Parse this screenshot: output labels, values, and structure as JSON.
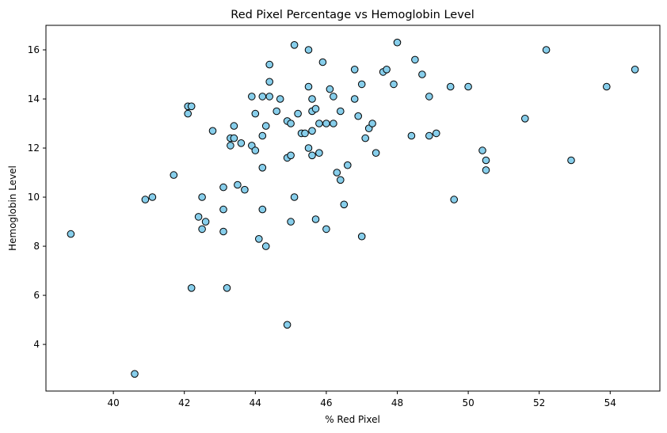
{
  "chart_data": {
    "type": "scatter",
    "title": "Red Pixel Percentage vs Hemoglobin Level",
    "xlabel": "% Red Pixel",
    "ylabel": "Hemoglobin Level",
    "xlim": [
      38.1,
      55.4
    ],
    "ylim": [
      2.1,
      17.0
    ],
    "xticks": [
      40,
      42,
      44,
      46,
      48,
      50,
      52,
      54
    ],
    "yticks": [
      4,
      6,
      8,
      10,
      12,
      14,
      16
    ],
    "grid": false,
    "legend": "none",
    "marker_color": "#87CEEB",
    "marker_edge_color": "#000000",
    "points": [
      [
        38.8,
        8.5
      ],
      [
        40.6,
        2.8
      ],
      [
        40.9,
        9.9
      ],
      [
        41.1,
        10.0
      ],
      [
        41.7,
        10.9
      ],
      [
        42.1,
        13.7
      ],
      [
        42.1,
        13.4
      ],
      [
        42.2,
        13.7
      ],
      [
        42.2,
        6.3
      ],
      [
        42.4,
        9.2
      ],
      [
        42.5,
        8.7
      ],
      [
        42.5,
        10.0
      ],
      [
        42.6,
        9.0
      ],
      [
        42.8,
        12.7
      ],
      [
        43.1,
        10.4
      ],
      [
        43.1,
        9.5
      ],
      [
        43.1,
        8.6
      ],
      [
        43.2,
        6.3
      ],
      [
        43.3,
        12.4
      ],
      [
        43.3,
        12.1
      ],
      [
        43.4,
        12.9
      ],
      [
        43.4,
        12.4
      ],
      [
        43.5,
        10.5
      ],
      [
        43.6,
        12.2
      ],
      [
        43.7,
        10.3
      ],
      [
        43.9,
        14.1
      ],
      [
        43.9,
        12.1
      ],
      [
        44.0,
        13.4
      ],
      [
        44.0,
        11.9
      ],
      [
        44.1,
        8.3
      ],
      [
        44.2,
        9.5
      ],
      [
        44.2,
        11.2
      ],
      [
        44.2,
        12.5
      ],
      [
        44.2,
        14.1
      ],
      [
        44.3,
        12.9
      ],
      [
        44.3,
        8.0
      ],
      [
        44.4,
        14.1
      ],
      [
        44.4,
        15.4
      ],
      [
        44.4,
        14.7
      ],
      [
        44.6,
        13.5
      ],
      [
        44.7,
        14.0
      ],
      [
        44.9,
        11.6
      ],
      [
        44.9,
        13.1
      ],
      [
        44.9,
        4.8
      ],
      [
        45.0,
        11.7
      ],
      [
        45.0,
        13.0
      ],
      [
        45.0,
        9.0
      ],
      [
        45.1,
        10.0
      ],
      [
        45.1,
        16.2
      ],
      [
        45.2,
        13.4
      ],
      [
        45.3,
        12.6
      ],
      [
        45.4,
        12.6
      ],
      [
        45.5,
        12.0
      ],
      [
        45.5,
        14.5
      ],
      [
        45.5,
        16.0
      ],
      [
        45.6,
        14.0
      ],
      [
        45.6,
        13.5
      ],
      [
        45.6,
        11.7
      ],
      [
        45.6,
        12.7
      ],
      [
        45.7,
        13.6
      ],
      [
        45.7,
        9.1
      ],
      [
        45.8,
        11.8
      ],
      [
        45.8,
        13.0
      ],
      [
        45.9,
        15.5
      ],
      [
        46.0,
        13.0
      ],
      [
        46.0,
        8.7
      ],
      [
        46.1,
        14.4
      ],
      [
        46.2,
        14.1
      ],
      [
        46.2,
        13.0
      ],
      [
        46.3,
        11.0
      ],
      [
        46.4,
        10.7
      ],
      [
        46.4,
        13.5
      ],
      [
        46.5,
        9.7
      ],
      [
        46.6,
        11.3
      ],
      [
        46.8,
        15.2
      ],
      [
        46.8,
        14.0
      ],
      [
        46.9,
        13.3
      ],
      [
        47.0,
        8.4
      ],
      [
        47.0,
        14.6
      ],
      [
        47.1,
        12.4
      ],
      [
        47.2,
        12.8
      ],
      [
        47.3,
        13.0
      ],
      [
        47.4,
        11.8
      ],
      [
        47.6,
        15.1
      ],
      [
        47.7,
        15.2
      ],
      [
        47.9,
        14.6
      ],
      [
        48.0,
        16.3
      ],
      [
        48.4,
        12.5
      ],
      [
        48.5,
        15.6
      ],
      [
        48.7,
        15.0
      ],
      [
        48.9,
        14.1
      ],
      [
        48.9,
        12.5
      ],
      [
        49.1,
        12.6
      ],
      [
        49.5,
        14.5
      ],
      [
        49.6,
        9.9
      ],
      [
        50.0,
        14.5
      ],
      [
        50.4,
        11.9
      ],
      [
        50.5,
        11.5
      ],
      [
        50.5,
        11.1
      ],
      [
        51.6,
        13.2
      ],
      [
        52.2,
        16.0
      ],
      [
        52.9,
        11.5
      ],
      [
        53.9,
        14.5
      ],
      [
        54.7,
        15.2
      ]
    ]
  }
}
